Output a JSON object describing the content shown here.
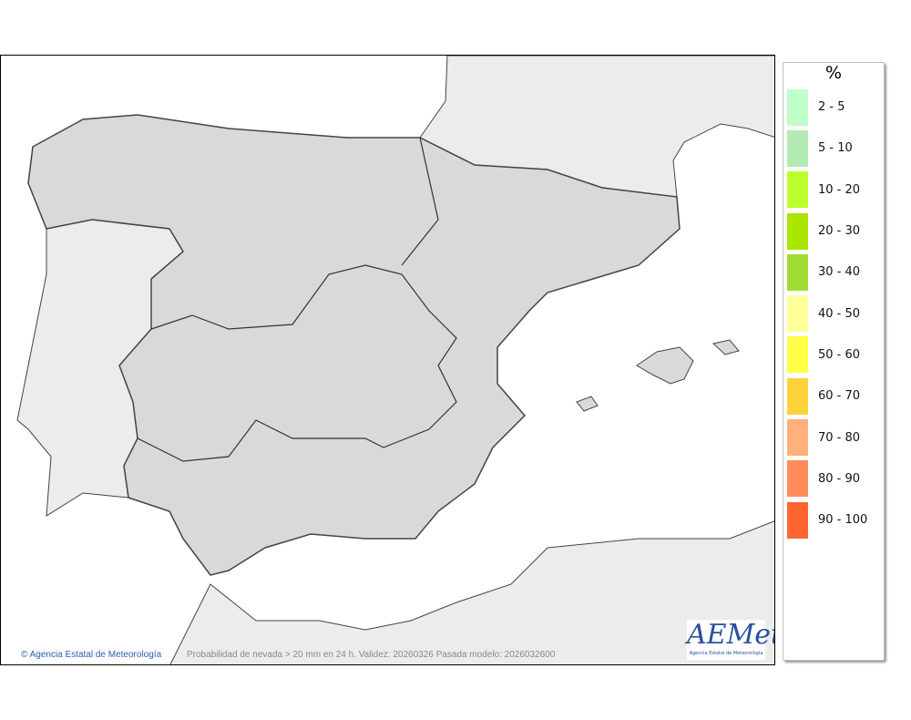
{
  "map": {
    "copyright": "© Agencia Estatal de Meteorología",
    "caption": "Probabilidad de nevada > 20 mm en 24 h. Validez: 20260326 Pasada modelo: 2026032600",
    "logo_text": "AEMet",
    "logo_subtitle": "Agencia Estatal de Meteorología",
    "colors": {
      "sea": "#ffffff",
      "foreign_land": "#ececec",
      "spain_land": "#d9d9d9",
      "borders": "#444444"
    }
  },
  "legend": {
    "unit": "%",
    "items": [
      {
        "label": "2 - 5",
        "color": "#c0ffc8"
      },
      {
        "label": "5 - 10",
        "color": "#b4ebb4"
      },
      {
        "label": "10 - 20",
        "color": "#bcff30"
      },
      {
        "label": "20 - 30",
        "color": "#aae600"
      },
      {
        "label": "30 - 40",
        "color": "#a0dc32"
      },
      {
        "label": "40 - 50",
        "color": "#ffff9a"
      },
      {
        "label": "50 - 60",
        "color": "#ffff46"
      },
      {
        "label": "60 - 70",
        "color": "#ffd23c"
      },
      {
        "label": "70 - 80",
        "color": "#ffb07c"
      },
      {
        "label": "80 - 90",
        "color": "#ff8c5a"
      },
      {
        "label": "90 - 100",
        "color": "#ff6432"
      }
    ]
  }
}
